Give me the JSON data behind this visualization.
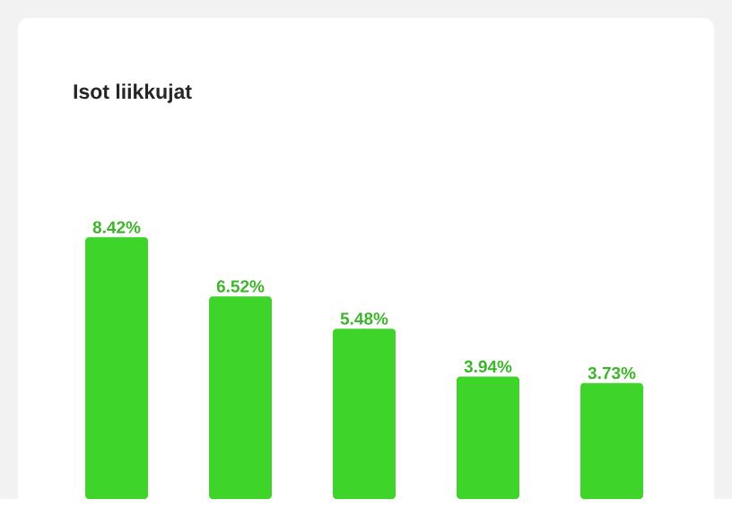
{
  "chart_data": {
    "type": "bar",
    "title": "Isot liikkujat",
    "categories": [
      null,
      null,
      null,
      null,
      null
    ],
    "values": [
      8.42,
      6.52,
      5.48,
      3.94,
      3.73
    ],
    "value_labels": [
      "8.42%",
      "6.52%",
      "5.48%",
      "3.94%",
      "3.73%"
    ],
    "color": "#3fd42a"
  }
}
